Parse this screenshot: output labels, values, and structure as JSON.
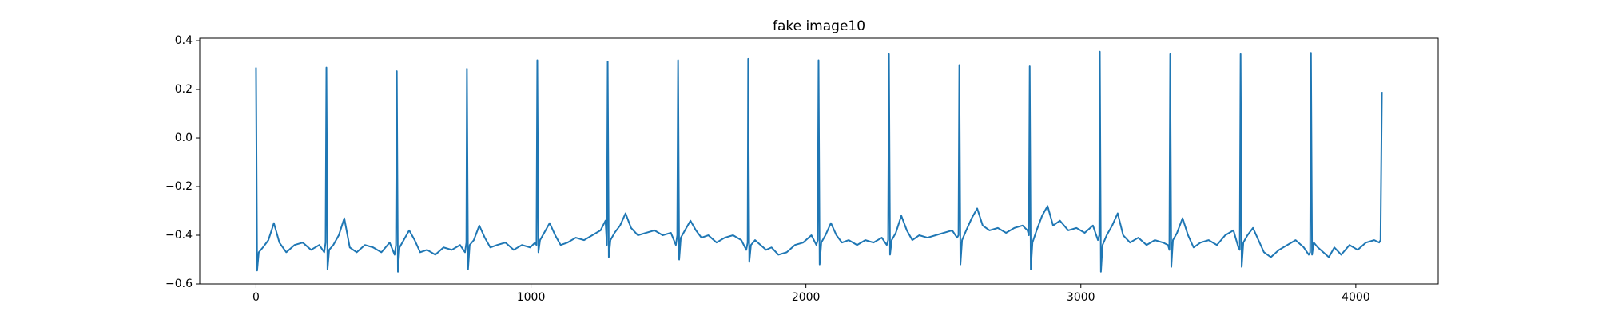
{
  "chart_data": {
    "type": "line",
    "title": "fake image10",
    "x": [
      0,
      4,
      10,
      25,
      45,
      65,
      85,
      110,
      140,
      170,
      200,
      230,
      248,
      253,
      256,
      260,
      266,
      281,
      301,
      321,
      341,
      366,
      396,
      426,
      456,
      486,
      504,
      509,
      512,
      516,
      522,
      537,
      557,
      577,
      597,
      622,
      652,
      682,
      712,
      742,
      760,
      765,
      767,
      771,
      777,
      792,
      812,
      832,
      852,
      877,
      907,
      937,
      967,
      997,
      1015,
      1020,
      1023,
      1027,
      1033,
      1048,
      1068,
      1088,
      1108,
      1133,
      1163,
      1193,
      1223,
      1253,
      1271,
      1276,
      1279,
      1283,
      1289,
      1304,
      1324,
      1344,
      1364,
      1389,
      1419,
      1449,
      1479,
      1509,
      1527,
      1532,
      1535,
      1539,
      1545,
      1560,
      1580,
      1600,
      1620,
      1645,
      1675,
      1705,
      1735,
      1765,
      1783,
      1788,
      1790,
      1794,
      1800,
      1815,
      1835,
      1855,
      1875,
      1900,
      1930,
      1960,
      1990,
      2020,
      2038,
      2043,
      2046,
      2050,
      2056,
      2071,
      2091,
      2111,
      2131,
      2156,
      2186,
      2216,
      2246,
      2276,
      2294,
      2299,
      2302,
      2306,
      2312,
      2327,
      2347,
      2367,
      2387,
      2412,
      2442,
      2472,
      2502,
      2532,
      2550,
      2555,
      2558,
      2562,
      2568,
      2583,
      2603,
      2623,
      2643,
      2668,
      2698,
      2728,
      2758,
      2788,
      2806,
      2811,
      2814,
      2818,
      2824,
      2839,
      2859,
      2879,
      2899,
      2924,
      2954,
      2984,
      3014,
      3044,
      3062,
      3067,
      3069,
      3073,
      3079,
      3094,
      3114,
      3134,
      3154,
      3179,
      3209,
      3239,
      3269,
      3299,
      3317,
      3322,
      3325,
      3329,
      3335,
      3350,
      3370,
      3390,
      3410,
      3435,
      3465,
      3495,
      3525,
      3555,
      3573,
      3578,
      3581,
      3585,
      3591,
      3606,
      3626,
      3646,
      3666,
      3691,
      3721,
      3751,
      3781,
      3811,
      3829,
      3834,
      3837,
      3841,
      3847,
      3862,
      3882,
      3902,
      3922,
      3947,
      3977,
      4007,
      4037,
      4067,
      4085,
      4090,
      4095
    ],
    "series": [
      {
        "color": "#1f77b4",
        "values": [
          0.29,
          -0.545,
          -0.47,
          -0.45,
          -0.42,
          -0.35,
          -0.43,
          -0.47,
          -0.44,
          -0.43,
          -0.46,
          -0.44,
          -0.47,
          -0.43,
          0.29,
          -0.54,
          -0.46,
          -0.44,
          -0.4,
          -0.33,
          -0.45,
          -0.47,
          -0.44,
          -0.45,
          -0.47,
          -0.43,
          -0.48,
          -0.44,
          0.275,
          -0.55,
          -0.45,
          -0.42,
          -0.38,
          -0.42,
          -0.47,
          -0.46,
          -0.48,
          -0.45,
          -0.46,
          -0.44,
          -0.47,
          -0.43,
          0.285,
          -0.54,
          -0.44,
          -0.42,
          -0.36,
          -0.41,
          -0.45,
          -0.44,
          -0.43,
          -0.46,
          -0.44,
          -0.45,
          -0.43,
          -0.44,
          0.32,
          -0.47,
          -0.42,
          -0.39,
          -0.35,
          -0.4,
          -0.44,
          -0.43,
          -0.41,
          -0.42,
          -0.4,
          -0.38,
          -0.34,
          -0.44,
          0.315,
          -0.49,
          -0.42,
          -0.39,
          -0.36,
          -0.31,
          -0.37,
          -0.4,
          -0.39,
          -0.38,
          -0.4,
          -0.39,
          -0.44,
          -0.4,
          0.32,
          -0.5,
          -0.41,
          -0.38,
          -0.34,
          -0.38,
          -0.41,
          -0.4,
          -0.43,
          -0.41,
          -0.4,
          -0.42,
          -0.46,
          -0.43,
          0.325,
          -0.51,
          -0.44,
          -0.42,
          -0.44,
          -0.46,
          -0.45,
          -0.48,
          -0.47,
          -0.44,
          -0.43,
          -0.4,
          -0.44,
          -0.42,
          0.32,
          -0.52,
          -0.43,
          -0.4,
          -0.35,
          -0.4,
          -0.43,
          -0.42,
          -0.44,
          -0.42,
          -0.43,
          -0.41,
          -0.44,
          -0.42,
          0.345,
          -0.48,
          -0.42,
          -0.39,
          -0.32,
          -0.38,
          -0.42,
          -0.4,
          -0.41,
          -0.4,
          -0.39,
          -0.38,
          -0.41,
          -0.4,
          0.3,
          -0.52,
          -0.42,
          -0.38,
          -0.33,
          -0.29,
          -0.36,
          -0.38,
          -0.37,
          -0.39,
          -0.37,
          -0.36,
          -0.38,
          -0.4,
          0.295,
          -0.54,
          -0.43,
          -0.38,
          -0.32,
          -0.28,
          -0.36,
          -0.34,
          -0.38,
          -0.37,
          -0.39,
          -0.36,
          -0.42,
          -0.4,
          0.355,
          -0.55,
          -0.44,
          -0.4,
          -0.36,
          -0.31,
          -0.4,
          -0.43,
          -0.41,
          -0.44,
          -0.42,
          -0.43,
          -0.44,
          -0.46,
          0.345,
          -0.53,
          -0.42,
          -0.39,
          -0.33,
          -0.4,
          -0.45,
          -0.43,
          -0.42,
          -0.44,
          -0.4,
          -0.38,
          -0.45,
          -0.46,
          0.345,
          -0.53,
          -0.43,
          -0.4,
          -0.37,
          -0.42,
          -0.47,
          -0.49,
          -0.46,
          -0.44,
          -0.42,
          -0.45,
          -0.48,
          -0.47,
          0.35,
          -0.48,
          -0.43,
          -0.45,
          -0.47,
          -0.49,
          -0.45,
          -0.48,
          -0.44,
          -0.46,
          -0.43,
          -0.42,
          -0.43,
          -0.42,
          0.19
        ]
      }
    ],
    "xlim": [
      -204.75,
      4299.75
    ],
    "xticks": [
      0,
      1000,
      2000,
      3000,
      4000
    ],
    "ylim": [
      -0.6,
      0.41
    ],
    "yticks": [
      {
        "value": -0.6,
        "label": "−0.6"
      },
      {
        "value": -0.4,
        "label": "−0.4"
      },
      {
        "value": -0.2,
        "label": "−0.2"
      },
      {
        "value": 0,
        "label": "0.0"
      },
      0.2,
      0.4
    ],
    "grid": false
  }
}
